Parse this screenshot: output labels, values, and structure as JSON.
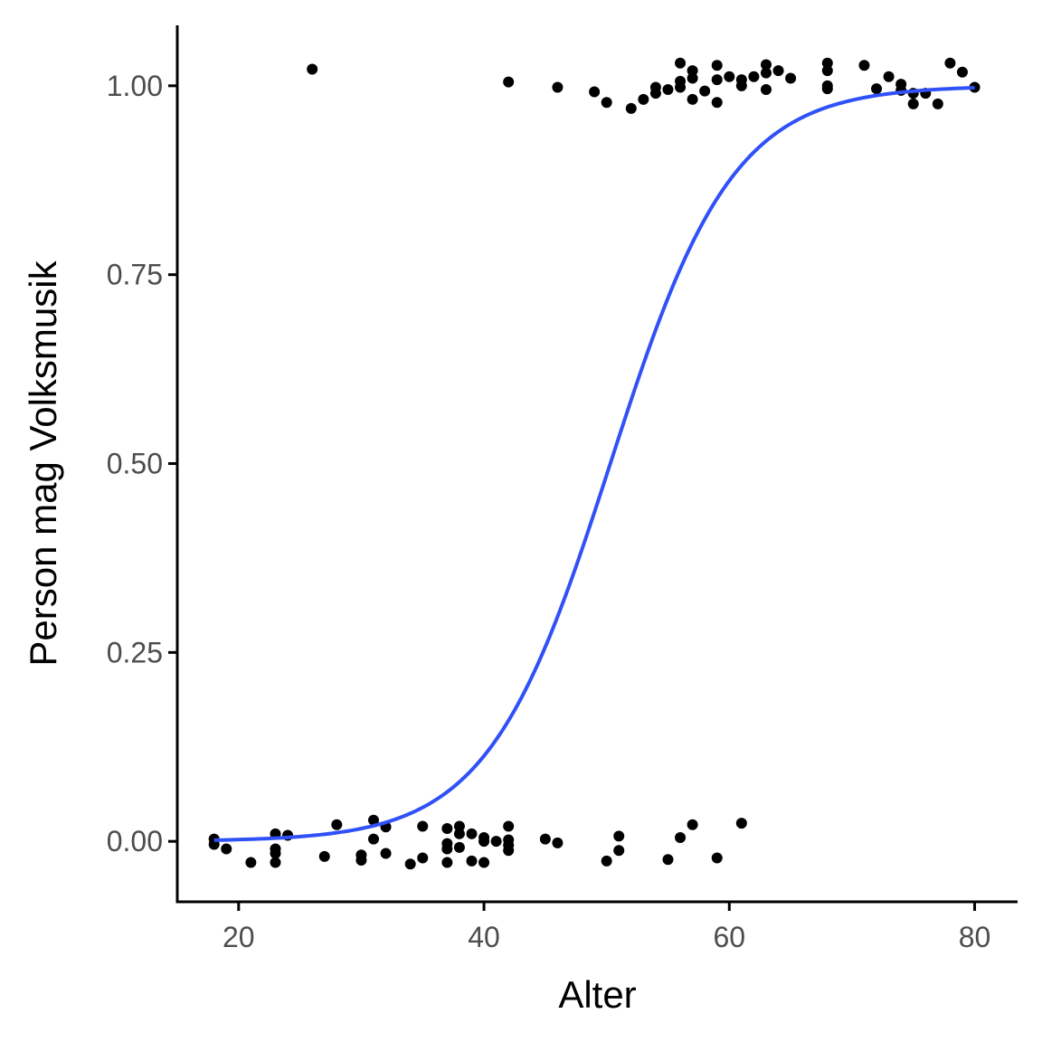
{
  "chart_data": {
    "type": "scatter",
    "title": "",
    "xlabel": "Alter",
    "ylabel": "Person mag Volksmusik",
    "xlim": [
      15,
      83.5
    ],
    "ylim": [
      -0.08,
      1.08
    ],
    "x_ticks": [
      20,
      40,
      60,
      80
    ],
    "x_tick_labels": [
      "20",
      "40",
      "60",
      "80"
    ],
    "y_ticks": [
      0,
      0.25,
      0.5,
      0.75,
      1
    ],
    "y_tick_labels": [
      "0.00",
      "0.25",
      "0.50",
      "0.75",
      "1.00"
    ],
    "grid": false,
    "legend": "none",
    "point_color": "#000000",
    "curve_color": "#3050f8",
    "curve": {
      "model": "logistic",
      "midpoint": 50.3,
      "slope": 0.2,
      "x_range": [
        18,
        80
      ]
    },
    "points": [
      {
        "x": 18,
        "y": 0.003
      },
      {
        "x": 18,
        "y": -0.004
      },
      {
        "x": 19,
        "y": -0.01
      },
      {
        "x": 21,
        "y": -0.028
      },
      {
        "x": 23,
        "y": 0.01
      },
      {
        "x": 23,
        "y": -0.01
      },
      {
        "x": 23,
        "y": -0.016
      },
      {
        "x": 23,
        "y": -0.028
      },
      {
        "x": 24,
        "y": 0.008
      },
      {
        "x": 27,
        "y": -0.02
      },
      {
        "x": 28,
        "y": 0.022
      },
      {
        "x": 30,
        "y": -0.018
      },
      {
        "x": 30,
        "y": -0.025
      },
      {
        "x": 31,
        "y": 0.028
      },
      {
        "x": 31,
        "y": 0.003
      },
      {
        "x": 32,
        "y": 0.019
      },
      {
        "x": 32,
        "y": -0.016
      },
      {
        "x": 34,
        "y": -0.03
      },
      {
        "x": 35,
        "y": 0.02
      },
      {
        "x": 35,
        "y": -0.022
      },
      {
        "x": 37,
        "y": 0.017
      },
      {
        "x": 37,
        "y": -0.003
      },
      {
        "x": 37,
        "y": -0.01
      },
      {
        "x": 37,
        "y": -0.028
      },
      {
        "x": 38,
        "y": 0.02
      },
      {
        "x": 38,
        "y": 0.01
      },
      {
        "x": 38,
        "y": -0.008
      },
      {
        "x": 39,
        "y": 0.01
      },
      {
        "x": 39,
        "y": -0.026
      },
      {
        "x": 40,
        "y": 0.005
      },
      {
        "x": 40,
        "y": 0.0
      },
      {
        "x": 40,
        "y": -0.028
      },
      {
        "x": 41,
        "y": 0.0
      },
      {
        "x": 42,
        "y": 0.02
      },
      {
        "x": 42,
        "y": 0.002
      },
      {
        "x": 42,
        "y": -0.005
      },
      {
        "x": 42,
        "y": -0.012
      },
      {
        "x": 45,
        "y": 0.003
      },
      {
        "x": 46,
        "y": -0.002
      },
      {
        "x": 50,
        "y": -0.026
      },
      {
        "x": 51,
        "y": 0.007
      },
      {
        "x": 51,
        "y": -0.012
      },
      {
        "x": 55,
        "y": -0.024
      },
      {
        "x": 56,
        "y": 0.005
      },
      {
        "x": 57,
        "y": 0.022
      },
      {
        "x": 59,
        "y": -0.022
      },
      {
        "x": 61,
        "y": 0.024
      },
      {
        "x": 26,
        "y": 1.022
      },
      {
        "x": 42,
        "y": 1.005
      },
      {
        "x": 46,
        "y": 0.998
      },
      {
        "x": 49,
        "y": 0.992
      },
      {
        "x": 50,
        "y": 0.978
      },
      {
        "x": 52,
        "y": 0.97
      },
      {
        "x": 53,
        "y": 0.982
      },
      {
        "x": 54,
        "y": 0.998
      },
      {
        "x": 54,
        "y": 0.99
      },
      {
        "x": 55,
        "y": 0.995
      },
      {
        "x": 56,
        "y": 1.03
      },
      {
        "x": 56,
        "y": 1.006
      },
      {
        "x": 56,
        "y": 0.998
      },
      {
        "x": 57,
        "y": 1.02
      },
      {
        "x": 57,
        "y": 1.01
      },
      {
        "x": 57,
        "y": 0.982
      },
      {
        "x": 58,
        "y": 0.993
      },
      {
        "x": 59,
        "y": 1.027
      },
      {
        "x": 59,
        "y": 1.008
      },
      {
        "x": 59,
        "y": 0.978
      },
      {
        "x": 60,
        "y": 1.012
      },
      {
        "x": 61,
        "y": 1.008
      },
      {
        "x": 61,
        "y": 1.0
      },
      {
        "x": 62,
        "y": 1.012
      },
      {
        "x": 63,
        "y": 1.028
      },
      {
        "x": 63,
        "y": 1.017
      },
      {
        "x": 63,
        "y": 0.995
      },
      {
        "x": 64,
        "y": 1.02
      },
      {
        "x": 65,
        "y": 1.01
      },
      {
        "x": 68,
        "y": 1.03
      },
      {
        "x": 68,
        "y": 1.02
      },
      {
        "x": 68,
        "y": 1.0
      },
      {
        "x": 68,
        "y": 0.996
      },
      {
        "x": 71,
        "y": 1.027
      },
      {
        "x": 72,
        "y": 0.996
      },
      {
        "x": 73,
        "y": 1.012
      },
      {
        "x": 74,
        "y": 1.002
      },
      {
        "x": 74,
        "y": 0.994
      },
      {
        "x": 75,
        "y": 0.99
      },
      {
        "x": 75,
        "y": 0.976
      },
      {
        "x": 76,
        "y": 0.99
      },
      {
        "x": 77,
        "y": 0.976
      },
      {
        "x": 78,
        "y": 1.03
      },
      {
        "x": 79,
        "y": 1.018
      },
      {
        "x": 80,
        "y": 0.998
      }
    ]
  }
}
